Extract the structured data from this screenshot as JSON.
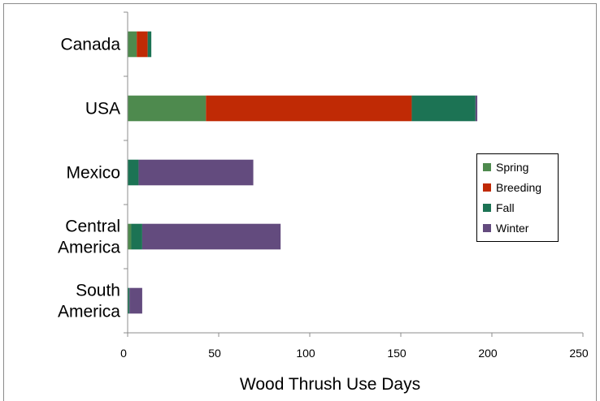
{
  "chart_data": {
    "type": "bar",
    "orientation": "horizontal",
    "stacked": true,
    "title": "",
    "xlabel": "Wood Thrush Use Days",
    "ylabel": "",
    "xlim": [
      0,
      250
    ],
    "x_ticks": [
      "0",
      "50",
      "100",
      "150",
      "200",
      "250"
    ],
    "grid": false,
    "legend_position": "right",
    "categories": [
      [
        "Canada"
      ],
      [
        "USA"
      ],
      [
        "Mexico"
      ],
      [
        "Central",
        "America"
      ],
      [
        "South",
        "America"
      ]
    ],
    "series": [
      {
        "name": "Spring",
        "color": "#4e8a4e",
        "values": [
          5,
          43,
          0,
          2,
          0
        ]
      },
      {
        "name": "Breeding",
        "color": "#c02a05",
        "values": [
          6,
          113,
          0,
          0,
          0
        ]
      },
      {
        "name": "Fall",
        "color": "#1c7354",
        "values": [
          2,
          35,
          6,
          6,
          1
        ]
      },
      {
        "name": "Winter",
        "color": "#634b7e",
        "values": [
          0,
          1,
          63,
          76,
          7
        ]
      }
    ]
  }
}
